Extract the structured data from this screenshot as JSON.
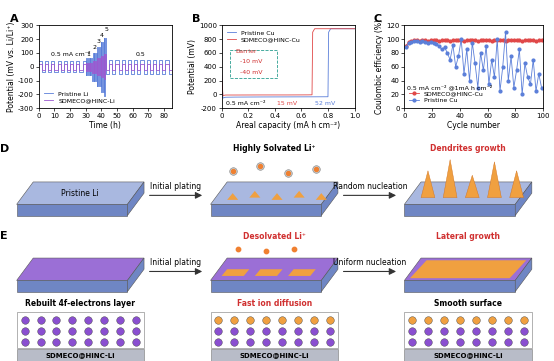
{
  "chart_data": [
    {
      "type": "step",
      "title": "A",
      "x_label": "Time (h)",
      "y_label": "Potential (mV vs. Li/Li⁺)",
      "x": [
        0,
        2,
        4,
        6,
        8,
        10,
        12,
        14,
        16,
        18,
        20,
        22,
        24,
        26,
        28,
        30,
        30.5,
        31,
        31.5,
        32,
        32.5,
        33,
        33.5,
        34,
        34.5,
        35,
        35.5,
        36,
        36.5,
        37,
        37.5,
        38,
        38.5,
        39,
        39.5,
        40,
        40.5,
        41,
        41.5,
        42,
        42.5,
        43,
        45,
        47,
        49,
        51,
        53,
        55,
        57,
        59,
        61,
        63,
        65,
        67,
        69,
        71,
        73,
        75,
        77,
        79,
        81,
        83,
        85
      ],
      "series": [
        {
          "name": "Pristine Li",
          "color": "#5b7fd9",
          "values": [
            40,
            -40,
            40,
            -40,
            40,
            -40,
            40,
            -40,
            40,
            -40,
            40,
            -40,
            40,
            -40,
            40,
            -60,
            60,
            -60,
            60,
            -60,
            60,
            -60,
            60,
            -100,
            100,
            -100,
            100,
            -100,
            100,
            -140,
            140,
            -140,
            140,
            -140,
            180,
            -180,
            180,
            -180,
            210,
            -210,
            210,
            -50,
            50,
            -50,
            50,
            -50,
            50,
            -50,
            50,
            -50,
            50,
            -50,
            50,
            -50,
            50,
            -50,
            50,
            -50,
            50,
            -50,
            50,
            -50,
            50
          ]
        },
        {
          "name": "SDMECO@HINC-Li",
          "color": "#9b59d0",
          "values": [
            20,
            -20,
            20,
            -20,
            20,
            -20,
            20,
            -20,
            20,
            -20,
            20,
            -20,
            20,
            -20,
            20,
            -30,
            30,
            -30,
            30,
            -30,
            30,
            -30,
            30,
            -45,
            45,
            -45,
            45,
            -45,
            45,
            -60,
            60,
            -60,
            60,
            -60,
            75,
            -75,
            75,
            -75,
            90,
            -90,
            90,
            -20,
            20,
            -20,
            20,
            -20,
            20,
            -20,
            20,
            -20,
            20,
            -20,
            20,
            -20,
            20,
            -20,
            20,
            -20,
            20,
            -20,
            20,
            -20,
            20
          ]
        }
      ],
      "xlim": [
        0,
        85
      ],
      "xticks": [
        0,
        10,
        20,
        30,
        40,
        50,
        60,
        70,
        80
      ],
      "ylim": [
        -300,
        300
      ],
      "yticks": [
        -300,
        -200,
        -100,
        0,
        100,
        200,
        300
      ],
      "legend": "lower left",
      "annotations": [
        {
          "text": "0.5 mA cm⁻²",
          "x": 8,
          "y": 80
        },
        {
          "text": "1",
          "x": 30.5,
          "y": 80
        },
        {
          "text": "2",
          "x": 34.5,
          "y": 130
        },
        {
          "text": "3",
          "x": 37,
          "y": 170
        },
        {
          "text": "4",
          "x": 39,
          "y": 215
        },
        {
          "text": "5",
          "x": 42,
          "y": 255
        },
        {
          "text": "0.5",
          "x": 62,
          "y": 80
        }
      ]
    },
    {
      "type": "line",
      "title": "B",
      "x_label": "Areal capacity (mA h cm⁻²)",
      "y_label": "Potential (mV)",
      "series": [
        {
          "name": "Pristine Cu",
          "color": "#5b7fd9",
          "x": [
            0,
            0.01,
            0.03,
            0.1,
            0.3,
            0.5,
            0.7,
            0.8,
            0.805,
            0.82,
            1.0
          ],
          "values": [
            300,
            -52,
            -40,
            -38,
            -36,
            -35,
            -34,
            -33,
            900,
            950,
            950
          ]
        },
        {
          "name": "SDMECO@HINC-Cu",
          "color": "#e04848",
          "x": [
            0,
            0.01,
            0.03,
            0.1,
            0.3,
            0.5,
            0.65,
            0.68,
            0.685,
            0.7,
            1.0
          ],
          "values": [
            300,
            -15,
            -8,
            -8,
            -7,
            -7,
            -6,
            -5,
            900,
            950,
            950
          ]
        }
      ],
      "xlim": [
        0,
        1.0
      ],
      "xticks": [
        0,
        0.2,
        0.4,
        0.6,
        0.8,
        1.0
      ],
      "ylim": [
        -200,
        1000
      ],
      "yticks": [
        -200,
        0,
        200,
        400,
        600,
        800,
        1000
      ],
      "legend": "upper left",
      "annotations": [
        {
          "text": "Barrier",
          "x": 0.1,
          "y": 600,
          "color": "#d03030"
        },
        {
          "text": "-10 mV",
          "x": 0.14,
          "y": 450,
          "color": "#d03030"
        },
        {
          "text": "-40 mV",
          "x": 0.14,
          "y": 300,
          "color": "#d03030"
        },
        {
          "text": "0.5 mA cm⁻²",
          "x": 0.03,
          "y": -150
        },
        {
          "text": "15 mV",
          "x": 0.42,
          "y": -150,
          "color": "#e04848"
        },
        {
          "text": "52 mV",
          "x": 0.7,
          "y": -150,
          "color": "#5b7fd9"
        }
      ]
    },
    {
      "type": "line",
      "title": "C",
      "x_label": "Cycle number",
      "y_label": "Coulombic efficiency (%)",
      "x": [
        1,
        3,
        5,
        7,
        9,
        11,
        13,
        15,
        17,
        19,
        21,
        23,
        25,
        27,
        29,
        31,
        33,
        35,
        37,
        39,
        41,
        43,
        45,
        47,
        49,
        51,
        53,
        55,
        57,
        59,
        61,
        63,
        65,
        67,
        69,
        71,
        73,
        75,
        77,
        79,
        81,
        83,
        85,
        87,
        89,
        91,
        93,
        95,
        97,
        99
      ],
      "series": [
        {
          "name": "SDMECO@HINC-Cu",
          "color": "#e04848",
          "marker": "o",
          "line_style": "solid",
          "values": [
            90,
            96,
            97,
            98,
            98,
            97,
            98,
            98,
            97,
            98,
            98,
            98,
            97,
            98,
            98,
            98,
            97,
            98,
            98,
            98,
            98,
            97,
            98,
            98,
            98,
            98,
            97,
            98,
            98,
            98,
            98,
            97,
            98,
            98,
            98,
            98,
            97,
            98,
            98,
            98,
            98,
            98,
            97,
            98,
            98,
            98,
            98,
            97,
            98,
            98
          ]
        },
        {
          "name": "Pristine Cu",
          "color": "#5b7fd9",
          "marker": "o",
          "line_style": "solid",
          "values": [
            88,
            94,
            96,
            97,
            97,
            96,
            97,
            96,
            95,
            96,
            94,
            93,
            90,
            85,
            88,
            80,
            70,
            92,
            60,
            75,
            100,
            50,
            85,
            40,
            95,
            65,
            30,
            80,
            55,
            90,
            35,
            70,
            45,
            100,
            25,
            60,
            110,
            40,
            75,
            30,
            55,
            85,
            20,
            65,
            45,
            35,
            70,
            25,
            50,
            30
          ]
        }
      ],
      "xlim": [
        0,
        100
      ],
      "xticks": [
        0,
        20,
        40,
        60,
        80,
        100
      ],
      "ylim": [
        0,
        120
      ],
      "yticks": [
        0,
        20,
        40,
        60,
        80,
        100,
        120
      ],
      "legend": "lower left",
      "annotations": [
        {
          "text": "0.5 mA cm⁻² @1mA h cm⁻²",
          "x": 2,
          "y": 28
        }
      ]
    }
  ],
  "scheme_D": {
    "panel": "D",
    "slab_label": "Pristine Li",
    "steps": [
      "Initial plating",
      "Random nucleation"
    ],
    "notes": [
      "Highly Solvated Li⁺",
      "Dendrites growth"
    ]
  },
  "scheme_E": {
    "panel": "E",
    "steps": [
      "Initial plating",
      "Uniform nucleation"
    ],
    "notes": [
      "Desolvated Li⁺",
      "Lateral growth"
    ],
    "lattice_notes": [
      "Rebuilt 4f-electrons layer",
      "Fast ion diffusion",
      "Smooth surface"
    ],
    "substrate": "SDMECO@HINC-Li"
  }
}
